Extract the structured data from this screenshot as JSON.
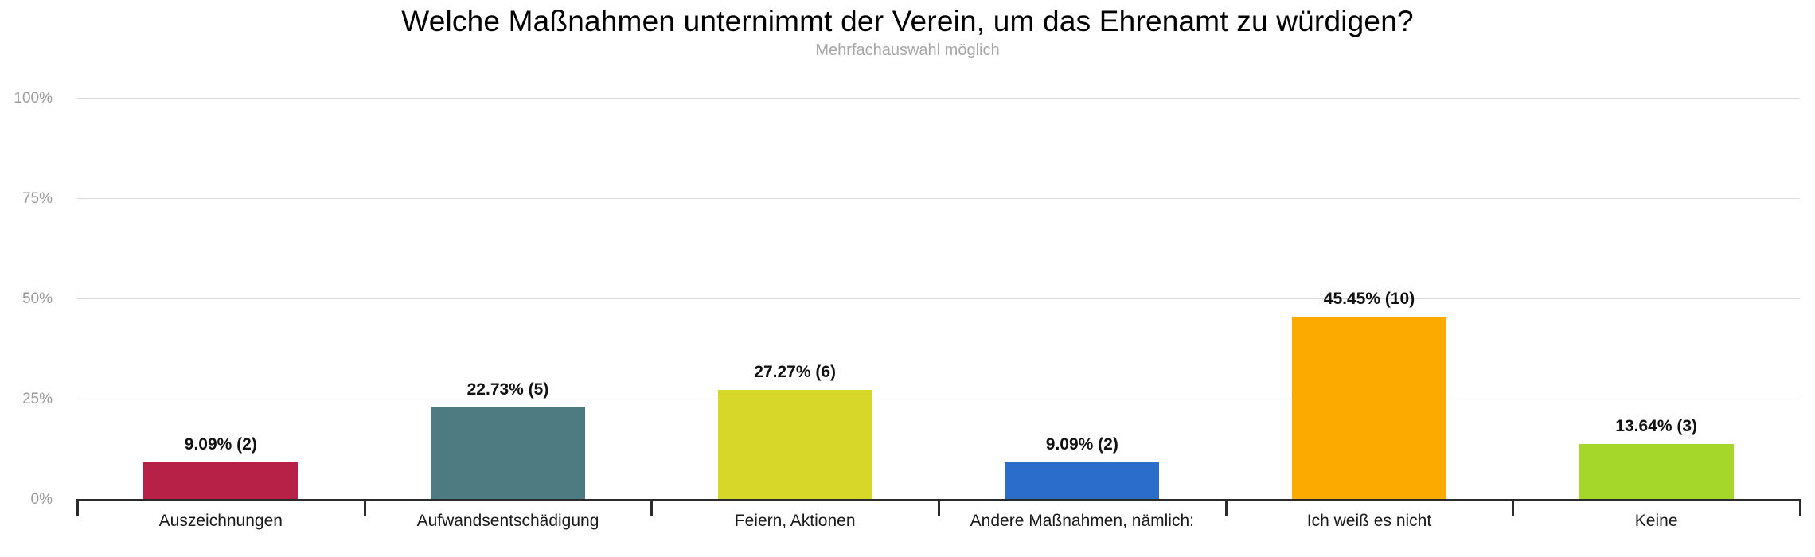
{
  "header": {
    "title": "Welche Maßnahmen unternimmt der Verein, um das Ehrenamt zu würdigen?",
    "subtitle": "Mehrfachauswahl möglich"
  },
  "chart_data": {
    "type": "bar",
    "title": "Welche Maßnahmen unternimmt der Verein, um das Ehrenamt zu würdigen?",
    "subtitle": "Mehrfachauswahl möglich",
    "categories": [
      "Auszeichnungen",
      "Aufwandsentschädigung",
      "Feiern, Aktionen",
      "Andere Maßnahmen, nämlich:",
      "Ich weiß es nicht",
      "Keine"
    ],
    "values": [
      9.09,
      22.73,
      27.27,
      9.09,
      45.45,
      13.64
    ],
    "counts": [
      2,
      5,
      6,
      2,
      10,
      3
    ],
    "value_labels": [
      "9.09% (2)",
      "22.73% (5)",
      "27.27% (6)",
      "9.09% (2)",
      "45.45% (10)",
      "13.64% (3)"
    ],
    "bar_colors": [
      "#b72047",
      "#4e7b81",
      "#d6d728",
      "#2a6dcb",
      "#fdaa00",
      "#a4d72a"
    ],
    "xlabel": "",
    "ylabel": "",
    "yticks": [
      {
        "label": "0%",
        "value": 0
      },
      {
        "label": "25%",
        "value": 25
      },
      {
        "label": "50%",
        "value": 50
      },
      {
        "label": "75%",
        "value": 75
      },
      {
        "label": "100%",
        "value": 100
      }
    ],
    "ylim": [
      0,
      100
    ],
    "grid": "horizontal",
    "legend_position": "none",
    "axis_color": "#2b2b2b",
    "gridline_color": "#d9d9d9",
    "ytick_label_color": "#9b9b9b"
  }
}
